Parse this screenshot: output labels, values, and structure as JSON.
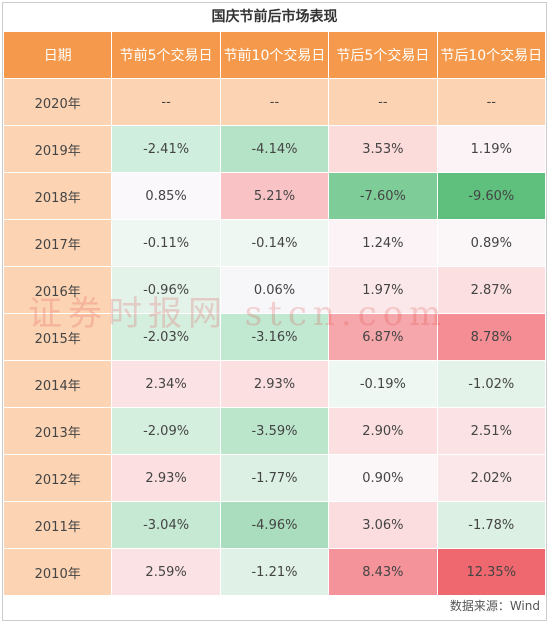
{
  "title": "国庆节前后市场表现",
  "columns": [
    "日期",
    "节前5个交易日",
    "节前10个交易日",
    "节后5个交易日",
    "节后10个交易日"
  ],
  "rows": [
    {
      "year": "2020年",
      "values": [
        "--",
        "--",
        "--",
        "--"
      ],
      "colors": [
        "#fcd4b4",
        "#fcd4b4",
        "#fcd4b4",
        "#fcd4b4"
      ]
    },
    {
      "year": "2019年",
      "values": [
        "-2.41%",
        "-4.14%",
        "3.53%",
        "1.19%"
      ],
      "colors": [
        "#cfeedd",
        "#b5e3c8",
        "#fcdbdb",
        "#fbf3f5"
      ]
    },
    {
      "year": "2018年",
      "values": [
        "0.85%",
        "5.21%",
        "-7.60%",
        "-9.60%"
      ],
      "colors": [
        "#fbf8fb",
        "#f9c3c6",
        "#7ecd98",
        "#5fbf7c"
      ]
    },
    {
      "year": "2017年",
      "values": [
        "-0.11%",
        "-0.14%",
        "1.24%",
        "0.89%"
      ],
      "colors": [
        "#eef7f1",
        "#eef7f1",
        "#fbf3f5",
        "#fbf7f9"
      ]
    },
    {
      "year": "2016年",
      "values": [
        "-0.96%",
        "0.06%",
        "1.97%",
        "2.87%"
      ],
      "colors": [
        "#e3f3e9",
        "#f7f7f9",
        "#fbe8ea",
        "#fbdfe1"
      ]
    },
    {
      "year": "2015年",
      "values": [
        "-2.03%",
        "-3.16%",
        "6.87%",
        "8.78%"
      ],
      "colors": [
        "#d5efdf",
        "#c1e8d0",
        "#f6a7ab",
        "#f48e94"
      ]
    },
    {
      "year": "2014年",
      "values": [
        "2.34%",
        "2.93%",
        "-0.19%",
        "-1.02%"
      ],
      "colors": [
        "#fbe3e5",
        "#fbdfe1",
        "#eef7f1",
        "#e3f3e9"
      ]
    },
    {
      "year": "2013年",
      "values": [
        "-2.09%",
        "-3.59%",
        "2.90%",
        "2.51%"
      ],
      "colors": [
        "#d5efdf",
        "#bbe6cc",
        "#fbdfe1",
        "#fbe3e5"
      ]
    },
    {
      "year": "2012年",
      "values": [
        "2.93%",
        "-1.77%",
        "0.90%",
        "2.02%"
      ],
      "colors": [
        "#fbdfe1",
        "#dcf1e4",
        "#fbf6f8",
        "#fbe7e9"
      ]
    },
    {
      "year": "2011年",
      "values": [
        "-3.04%",
        "-4.96%",
        "3.06%",
        "-1.78%"
      ],
      "colors": [
        "#c5e9d3",
        "#a9ddbd",
        "#fbdde0",
        "#dcf1e4"
      ]
    },
    {
      "year": "2010年",
      "values": [
        "2.59%",
        "-1.21%",
        "8.43%",
        "12.35%"
      ],
      "colors": [
        "#fbe2e4",
        "#e0f2e7",
        "#f4949a",
        "#f0686f"
      ]
    }
  ],
  "source": "数据来源：Wind",
  "watermark": "证券时报网 stcn.com"
}
